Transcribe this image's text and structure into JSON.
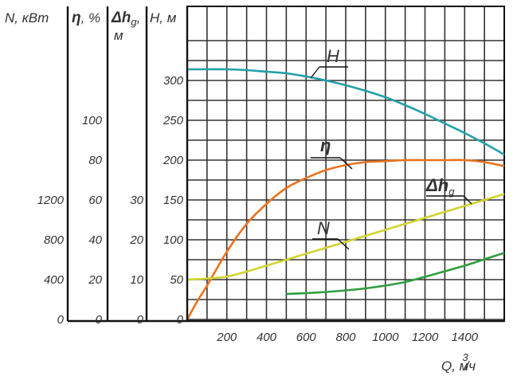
{
  "chart_data": {
    "type": "line",
    "x": {
      "label": "Q, м",
      "label_sup": "3",
      "label_suffix": "/ч",
      "range": [
        0,
        1600
      ],
      "ticks": [
        200,
        400,
        600,
        800,
        1000,
        1200,
        1400
      ]
    },
    "axes": [
      {
        "id": "N",
        "label": "N, кВт",
        "ticks": [
          {
            "v": 0,
            "t": "0"
          },
          {
            "v": 400,
            "t": "400"
          },
          {
            "v": 800,
            "t": "800"
          },
          {
            "v": 1200,
            "t": "1200"
          }
        ]
      },
      {
        "id": "eta",
        "label_symbol": "η",
        "label_unit": ", %",
        "ticks": [
          {
            "v": 0,
            "t": "0"
          },
          {
            "v": 20,
            "t": "20"
          },
          {
            "v": 40,
            "t": "40"
          },
          {
            "v": 60,
            "t": "60"
          },
          {
            "v": 80,
            "t": "80"
          },
          {
            "v": 100,
            "t": "100"
          }
        ]
      },
      {
        "id": "dh",
        "label_symbol": "Δh",
        "label_sub": "g",
        "label_tail": ",",
        "label_unit": "м",
        "ticks": [
          {
            "v": 0,
            "t": "0"
          },
          {
            "v": 10,
            "t": "10"
          },
          {
            "v": 20,
            "t": "20"
          },
          {
            "v": 30,
            "t": "30"
          }
        ]
      },
      {
        "id": "H",
        "label": "Н, м",
        "range": [
          0,
          350
        ],
        "ticks": [
          {
            "v": 0,
            "t": "0"
          },
          {
            "v": 50,
            "t": "50"
          },
          {
            "v": 100,
            "t": "100"
          },
          {
            "v": 150,
            "t": "150"
          },
          {
            "v": 200,
            "t": "200"
          },
          {
            "v": 250,
            "t": "250"
          },
          {
            "v": 300,
            "t": "300"
          }
        ]
      }
    ],
    "series": [
      {
        "id": "H",
        "name": "H",
        "color": "#22a0a8",
        "x": [
          0,
          100,
          200,
          300,
          400,
          500,
          600,
          700,
          800,
          900,
          1000,
          1100,
          1200,
          1300,
          1400,
          1500,
          1600
        ],
        "y": [
          314,
          314,
          314,
          313,
          311,
          309,
          305,
          300,
          294,
          287,
          279,
          269,
          258,
          246,
          234,
          221,
          207
        ]
      },
      {
        "id": "eta",
        "name": "η",
        "color": "#e8731e",
        "x": [
          0,
          50,
          100,
          200,
          300,
          400,
          500,
          600,
          700,
          800,
          900,
          1000,
          1100,
          1200,
          1300,
          1400,
          1500,
          1600
        ],
        "y": [
          0,
          9,
          17,
          34,
          48,
          58,
          66,
          71,
          75,
          77.5,
          79,
          79.5,
          80,
          80,
          80,
          80,
          79,
          77
        ]
      },
      {
        "id": "N",
        "name": "N",
        "color": "#d3d32f",
        "x": [
          0,
          100,
          200,
          300,
          400,
          500,
          600,
          700,
          800,
          900,
          1000,
          1100,
          1200,
          1300,
          1400,
          1500,
          1600
        ],
        "y": [
          400,
          410,
          430,
          480,
          540,
          600,
          660,
          720,
          780,
          840,
          900,
          960,
          1020,
          1080,
          1140,
          1200,
          1260
        ]
      },
      {
        "id": "dh",
        "name": "Δh",
        "name_sub": "g",
        "color": "#2e9e3e",
        "x": [
          500,
          600,
          700,
          800,
          900,
          1000,
          1100,
          1200,
          1300,
          1400,
          1500,
          1600
        ],
        "y": [
          6.4,
          6.6,
          6.9,
          7.3,
          7.8,
          8.5,
          9.4,
          10.7,
          12.1,
          13.5,
          15.1,
          16.7
        ]
      }
    ]
  }
}
